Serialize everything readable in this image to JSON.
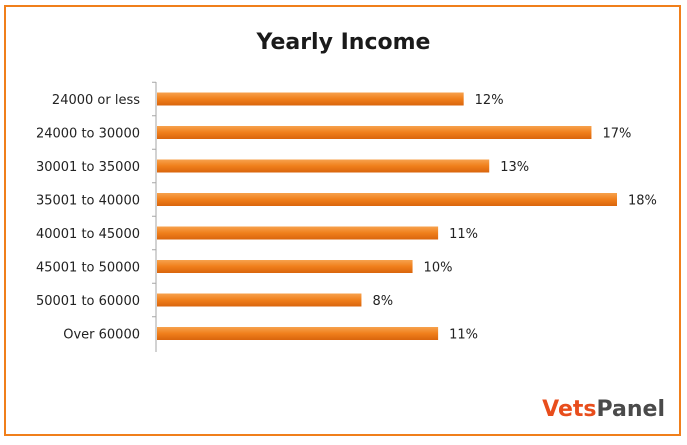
{
  "chart_data": {
    "type": "bar",
    "orientation": "horizontal",
    "title": "Yearly Income",
    "categories": [
      "24000 or less",
      "24000 to 30000",
      "30001 to 35000",
      "35001 to 40000",
      "40001 to 45000",
      "45001 to 50000",
      "50001 to 60000",
      "Over 60000"
    ],
    "values": [
      12,
      17,
      13,
      18,
      11,
      10,
      8,
      11
    ],
    "data_labels": [
      "12%",
      "17%",
      "13%",
      "18%",
      "11%",
      "10%",
      "8%",
      "11%"
    ],
    "xlim": [
      0,
      20
    ],
    "grid": false,
    "bar_color": "#f07f1b"
  },
  "brand": {
    "part1": "Vets",
    "part2": "Panel"
  },
  "colors": {
    "frame": "#f07f1b",
    "bar": "#f07f1b",
    "brand_accent": "#e84d1c",
    "brand_dark": "#4a4a4a"
  }
}
